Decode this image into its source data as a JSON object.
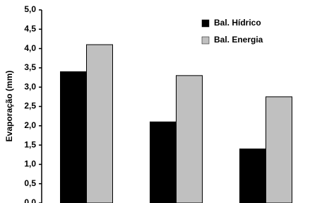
{
  "chart_data": {
    "type": "bar",
    "y_label": "Evaporação (mm)",
    "categories": [
      null,
      null,
      null
    ],
    "series": [
      {
        "name": "Bal. Hídrico",
        "color": "#000000",
        "values": [
          3.4,
          2.1,
          1.4
        ]
      },
      {
        "name": "Bal. Energia",
        "color": "#c0c0c0",
        "values": [
          4.1,
          3.3,
          2.75
        ]
      }
    ],
    "ylim": [
      0,
      5
    ],
    "yticks": [
      {
        "value": 0,
        "label": "0,0"
      },
      {
        "value": 0.5,
        "label": "0,5"
      },
      {
        "value": 1,
        "label": "1,0"
      },
      {
        "value": 1.5,
        "label": "1,5"
      },
      {
        "value": 2,
        "label": "2,0"
      },
      {
        "value": 2.5,
        "label": "2,5"
      },
      {
        "value": 3,
        "label": "3,0"
      },
      {
        "value": 3.5,
        "label": "3,5"
      },
      {
        "value": 4,
        "label": "4,0"
      },
      {
        "value": 4.5,
        "label": "4,5"
      },
      {
        "value": 5,
        "label": "5,0"
      }
    ],
    "grid": false,
    "legend": "top-right"
  }
}
